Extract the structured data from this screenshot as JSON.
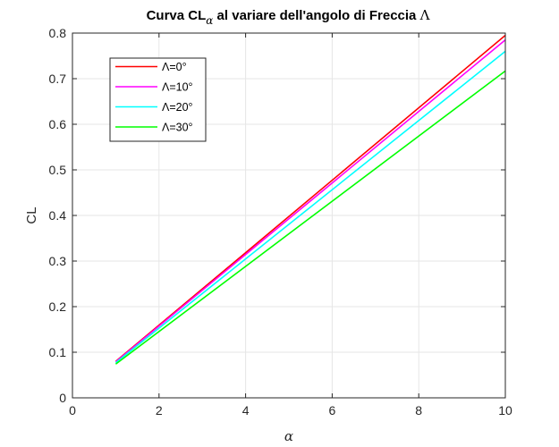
{
  "chart_data": {
    "type": "line",
    "title": {
      "prefix": "Curva CL",
      "subscript": "α",
      "middle": " al variare dell'angolo di Freccia ",
      "symbol": "Λ"
    },
    "xlabel": "α",
    "ylabel": "CL",
    "xlim": [
      0,
      10
    ],
    "ylim": [
      0,
      0.8
    ],
    "xticks": [
      0,
      2,
      4,
      6,
      8,
      10
    ],
    "yticks": [
      0,
      0.1,
      0.2,
      0.3,
      0.4,
      0.5,
      0.6,
      0.7,
      0.8
    ],
    "grid": true,
    "legend_position": "top-left",
    "series": [
      {
        "name": "Λ=0°",
        "color": "#ff0000",
        "x": [
          1,
          10
        ],
        "y": [
          0.08,
          0.795
        ]
      },
      {
        "name": "Λ=10°",
        "color": "#ff00ff",
        "x": [
          1,
          10
        ],
        "y": [
          0.079,
          0.785
        ]
      },
      {
        "name": "Λ=20°",
        "color": "#00ffff",
        "x": [
          1,
          10
        ],
        "y": [
          0.077,
          0.76
        ]
      },
      {
        "name": "Λ=30°",
        "color": "#00ff00",
        "x": [
          1,
          10
        ],
        "y": [
          0.074,
          0.717
        ]
      }
    ]
  }
}
